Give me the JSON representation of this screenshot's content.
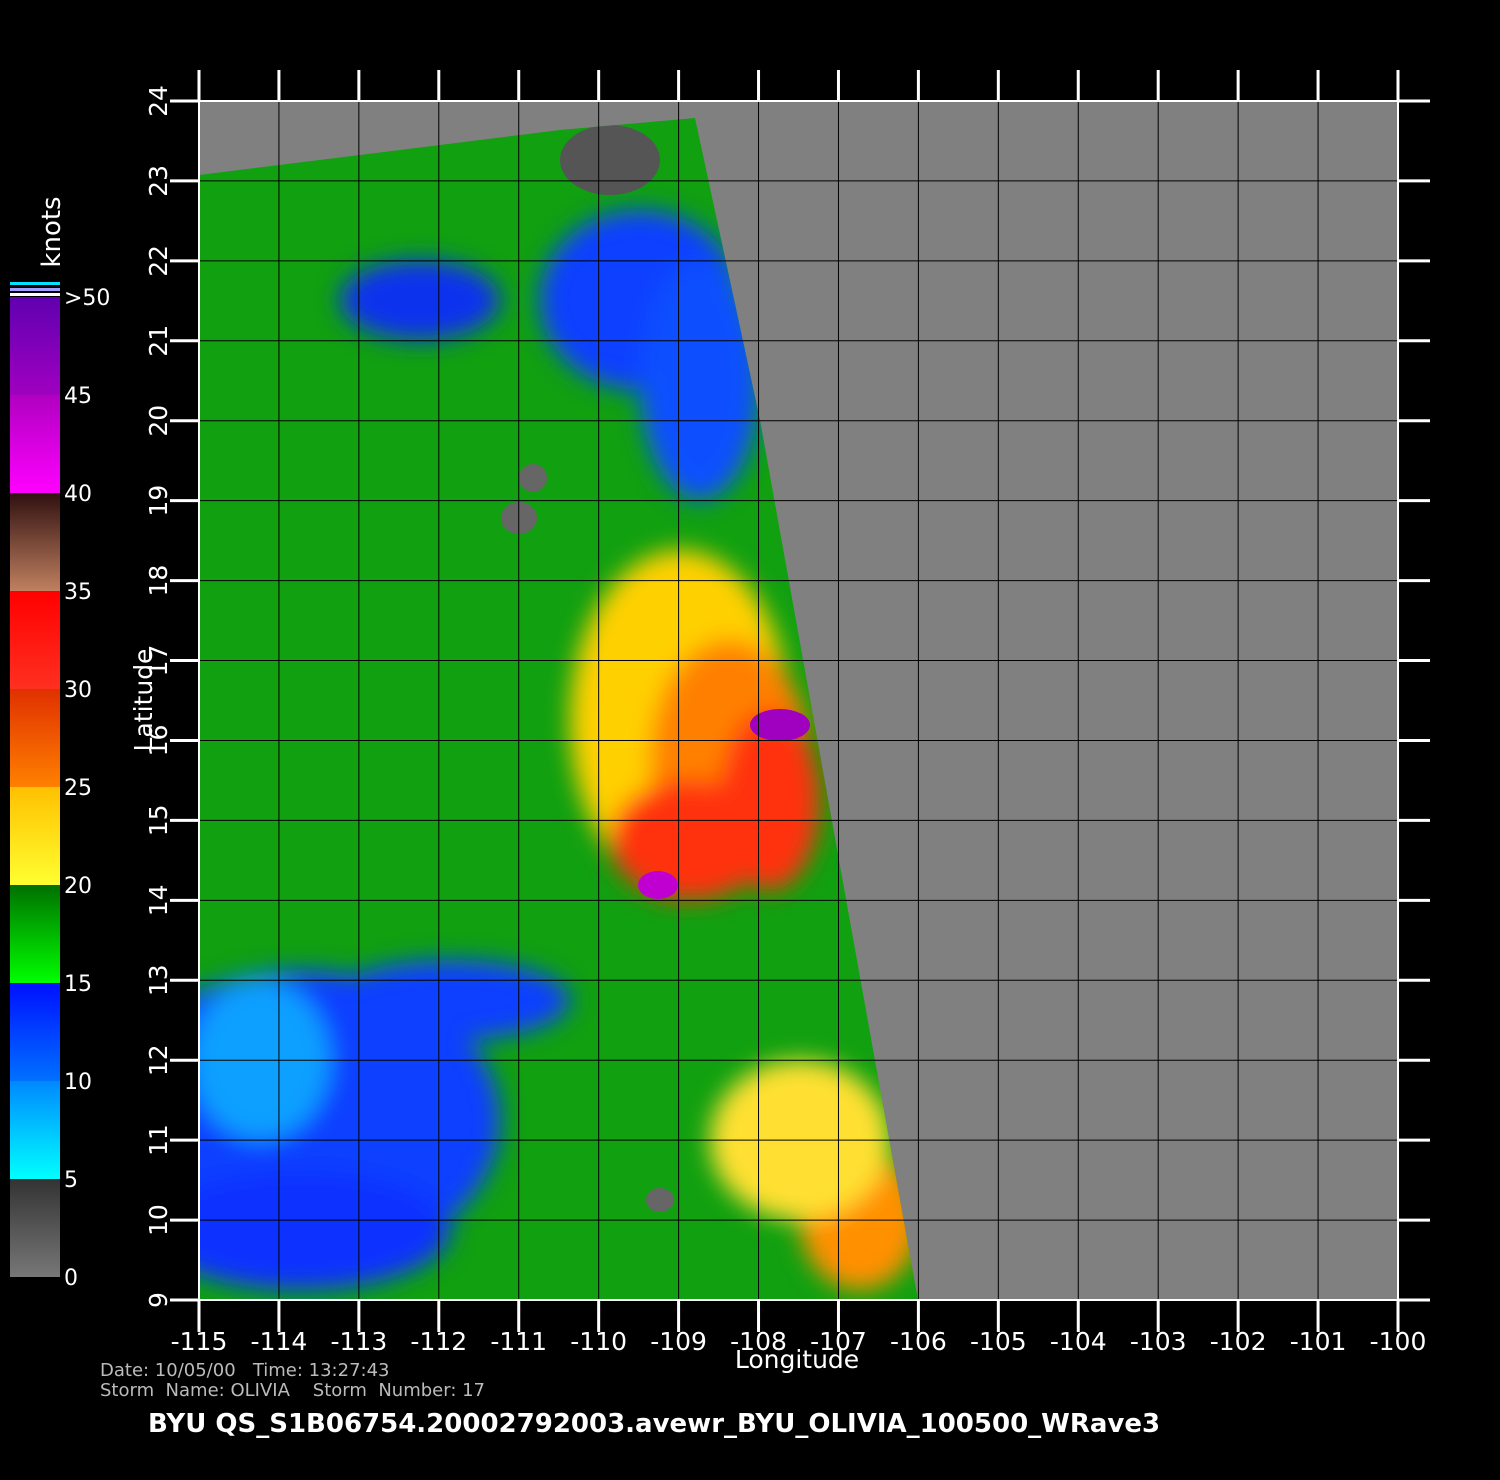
{
  "map": {
    "xlabel": "Longitude",
    "ylabel": "Latitude",
    "xlim": [
      -115,
      -100
    ],
    "ylim": [
      9,
      24
    ],
    "xticks": [
      -115,
      -114,
      -113,
      -112,
      -111,
      -110,
      -109,
      -108,
      -107,
      -106,
      -105,
      -104,
      -103,
      -102,
      -101,
      -100
    ],
    "yticks": [
      9,
      10,
      11,
      12,
      13,
      14,
      15,
      16,
      17,
      18,
      19,
      20,
      21,
      22,
      23,
      24
    ],
    "grid": true
  },
  "colorbar": {
    "label": "knots",
    "lim": [
      0,
      50
    ],
    "ticks": [
      0,
      5,
      10,
      15,
      20,
      25,
      30,
      35,
      40,
      45,
      {
        "value": 50,
        "label": ">50"
      }
    ],
    "colors": [
      [
        "#777777",
        "#333333"
      ],
      [
        "#00ffff",
        "#0088ff"
      ],
      [
        "#0070ff",
        "#0010ff"
      ],
      [
        "#00ff00",
        "#007000"
      ],
      [
        "#ffff30",
        "#ffc000"
      ],
      [
        "#ff8000",
        "#e03000"
      ],
      [
        "#ff3020",
        "#ff0000"
      ],
      [
        "#c08060",
        "#301010"
      ],
      [
        "#ff00ff",
        "#b000c0"
      ],
      [
        "#a000c0",
        "#6000b0"
      ]
    ]
  },
  "info": {
    "line1": "Date: 10/05/00   Time: 13:27:43",
    "line2": "Storm  Name: OLIVIA    Storm  Number: 17",
    "title": "BYU  QS_S1B06754.20002792003.avewr_BYU_OLIVIA_100500_WRave3"
  }
}
